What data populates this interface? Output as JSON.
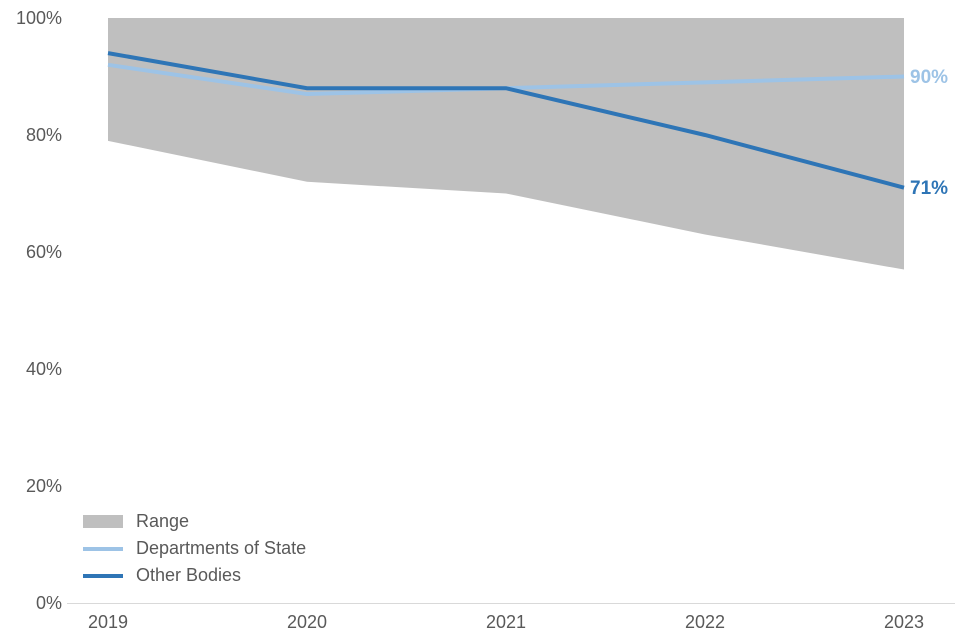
{
  "chart_data": {
    "type": "area",
    "subtype": "range-band-with-lines",
    "title": "",
    "xlabel": "",
    "ylabel": "",
    "categories": [
      "2019",
      "2020",
      "2021",
      "2022",
      "2023"
    ],
    "y_axis": {
      "min": 0,
      "max": 100,
      "tick_values": [
        0,
        20,
        40,
        60,
        80,
        100
      ],
      "tick_labels": [
        "0%",
        "20%",
        "40%",
        "60%",
        "80%",
        "100%"
      ]
    },
    "grid": false,
    "series": [
      {
        "name": "Range",
        "kind": "band",
        "color": "#BFBFBF",
        "upper": [
          100,
          100,
          100,
          100,
          100
        ],
        "lower": [
          79,
          72,
          70,
          63,
          57
        ]
      },
      {
        "name": "Departments of State",
        "kind": "line",
        "color": "#9DC3E6",
        "values": [
          92,
          87,
          88,
          89,
          90
        ],
        "end_label": "90%"
      },
      {
        "name": "Other Bodies",
        "kind": "line",
        "color": "#2E75B6",
        "values": [
          94,
          88,
          88,
          80,
          71
        ],
        "end_label": "71%"
      }
    ],
    "legend": {
      "position": "bottom-left",
      "items": [
        "Range",
        "Departments of State",
        "Other Bodies"
      ]
    },
    "colors": {
      "axis_line": "#D9D9D9",
      "tick_label": "#595959",
      "background": "#FFFFFF"
    }
  }
}
